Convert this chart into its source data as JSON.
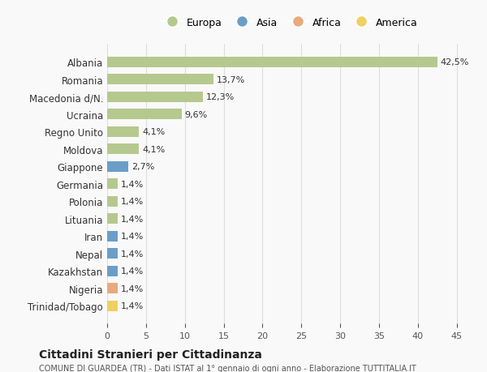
{
  "countries": [
    "Albania",
    "Romania",
    "Macedonia d/N.",
    "Ucraina",
    "Regno Unito",
    "Moldova",
    "Giappone",
    "Germania",
    "Polonia",
    "Lituania",
    "Iran",
    "Nepal",
    "Kazakhstan",
    "Nigeria",
    "Trinidad/Tobago"
  ],
  "values": [
    42.5,
    13.7,
    12.3,
    9.6,
    4.1,
    4.1,
    2.7,
    1.4,
    1.4,
    1.4,
    1.4,
    1.4,
    1.4,
    1.4,
    1.4
  ],
  "labels": [
    "42,5%",
    "13,7%",
    "12,3%",
    "9,6%",
    "4,1%",
    "4,1%",
    "2,7%",
    "1,4%",
    "1,4%",
    "1,4%",
    "1,4%",
    "1,4%",
    "1,4%",
    "1,4%",
    "1,4%"
  ],
  "continents": [
    "Europa",
    "Europa",
    "Europa",
    "Europa",
    "Europa",
    "Europa",
    "Asia",
    "Europa",
    "Europa",
    "Europa",
    "Asia",
    "Asia",
    "Asia",
    "Africa",
    "America"
  ],
  "continent_colors": {
    "Europa": "#b5c98e",
    "Asia": "#6b9ec7",
    "Africa": "#e8a97e",
    "America": "#f0d060"
  },
  "legend_order": [
    "Europa",
    "Asia",
    "Africa",
    "America"
  ],
  "title1": "Cittadini Stranieri per Cittadinanza",
  "title2": "COMUNE DI GUARDEA (TR) - Dati ISTAT al 1° gennaio di ogni anno - Elaborazione TUTTITALIA.IT",
  "xlim": [
    0,
    47
  ],
  "xticks": [
    0,
    5,
    10,
    15,
    20,
    25,
    30,
    35,
    40,
    45
  ],
  "background_color": "#f9f9f9",
  "grid_color": "#dddddd"
}
